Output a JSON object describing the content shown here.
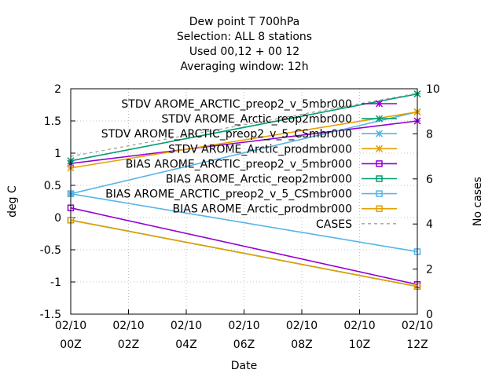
{
  "chart_data": {
    "type": "line",
    "title_lines": [
      "Dew point T 700hPa",
      "Selection: ALL       8 stations",
      "Used  00,12  + 00 12",
      "Averaging window: 12h"
    ],
    "xlabel": "Date",
    "ylabel": "deg C",
    "y2label": "No cases",
    "x": [
      0,
      12
    ],
    "x_ticks": [
      {
        "v": 0,
        "l1": "02/10",
        "l2": "00Z"
      },
      {
        "v": 2,
        "l1": "02/10",
        "l2": "02Z"
      },
      {
        "v": 4,
        "l1": "02/10",
        "l2": "04Z"
      },
      {
        "v": 6,
        "l1": "02/10",
        "l2": "06Z"
      },
      {
        "v": 8,
        "l1": "02/10",
        "l2": "08Z"
      },
      {
        "v": 10,
        "l1": "02/10",
        "l2": "10Z"
      },
      {
        "v": 12,
        "l1": "02/10",
        "l2": "12Z"
      }
    ],
    "xlim": [
      0,
      12
    ],
    "ylim": [
      -1.5,
      2
    ],
    "y_ticks": [
      "-1.5",
      "-1",
      "-0.5",
      "0",
      "0.5",
      "1",
      "1.5",
      "2"
    ],
    "y2lim": [
      0,
      10
    ],
    "y2_ticks": [
      "0",
      "2",
      "4",
      "6",
      "8",
      "10"
    ],
    "grid": true,
    "legend_position": "top-right",
    "series": [
      {
        "label": "STDV AROME_ARCTIC_preop2_v_5mbr000",
        "color": "#9400d3",
        "marker": "x",
        "axis": "y",
        "values": [
          0.84,
          1.5
        ]
      },
      {
        "label": "STDV AROME_Arctic_reop2mbr000",
        "color": "#009e73",
        "marker": "x",
        "axis": "y",
        "values": [
          0.88,
          1.92
        ]
      },
      {
        "label": "STDV AROME_ARCTIC_preop2_v_5_CSmbr000",
        "color": "#56b4e9",
        "marker": "x",
        "axis": "y",
        "values": [
          0.37,
          1.64
        ]
      },
      {
        "label": "STDV AROME_Arctic_prodmbr000",
        "color": "#e69f00",
        "marker": "x",
        "axis": "y",
        "values": [
          0.77,
          1.64
        ]
      },
      {
        "label": "BIAS AROME_ARCTIC_preop2_v_5mbr000",
        "color": "#9400d3",
        "marker": "square",
        "axis": "y",
        "values": [
          0.15,
          -1.04
        ]
      },
      {
        "label": "BIAS AROME_Arctic_reop2mbr000",
        "color": "#009e73",
        "marker": "square",
        "axis": "y",
        "values": [
          -0.04,
          -1.07
        ]
      },
      {
        "label": "BIAS AROME_ARCTIC_preop2_v_5_CSmbr000",
        "color": "#56b4e9",
        "marker": "square",
        "axis": "y",
        "values": [
          0.37,
          -0.53
        ]
      },
      {
        "label": "BIAS AROME_Arctic_prodmbr000",
        "color": "#e69f00",
        "marker": "square",
        "axis": "y",
        "values": [
          -0.04,
          -1.07
        ]
      },
      {
        "label": "CASES",
        "color": "#a0a0a0",
        "marker": "none",
        "dashed": true,
        "axis": "y2",
        "values": [
          7,
          9.8
        ]
      }
    ]
  }
}
